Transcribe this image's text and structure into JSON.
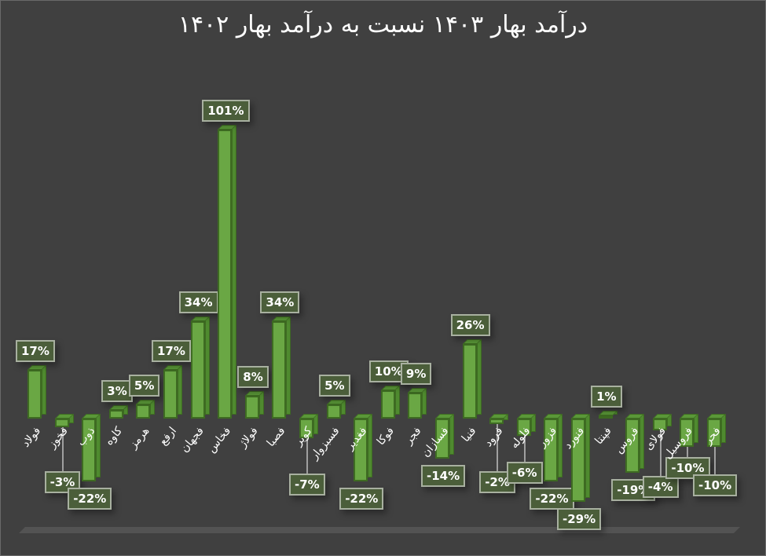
{
  "chart_data": {
    "type": "bar",
    "title": "درآمد بهار ۱۴۰۳ نسبت به درآمد بهار ۱۴۰۲",
    "xlabel": "",
    "ylabel": "",
    "grid": false,
    "legend": null,
    "value_format": "percent",
    "categories": [
      "فولاد",
      "فخوز",
      "ذوب",
      "کاوه",
      "هرمز",
      "ارفع",
      "فجهان",
      "فخاس",
      "فولاژ",
      "فصبا",
      "کویر",
      "فسبزوار",
      "فغدیر",
      "فوکا",
      "فجر",
      "فسازان",
      "فنیا",
      "فرود",
      "فلوله",
      "فزور",
      "فنورد",
      "فپنتا",
      "فروس",
      "فولای",
      "فروسیل",
      "فحر"
    ],
    "values": [
      17,
      -3,
      -22,
      3,
      5,
      17,
      34,
      101,
      8,
      34,
      -7,
      5,
      -22,
      10,
      9,
      -14,
      26,
      -2,
      -6,
      -22,
      -29,
      1,
      -19,
      -4,
      -10,
      -10
    ],
    "labels": [
      "17%",
      "-3%",
      "-22%",
      "3%",
      "5%",
      "17%",
      "34%",
      "101%",
      "8%",
      "34%",
      "-7%",
      "5%",
      "-22%",
      "10%",
      "9%",
      "-14%",
      "26%",
      "-2%",
      "-6%",
      "-22%",
      "-29%",
      "1%",
      "-19%",
      "-4%",
      "-10%",
      "-10%"
    ],
    "colors": {
      "bar": "#6aa744",
      "bar_border": "#3e6b22",
      "label_bg": "#4b5e3a",
      "background": "#404040",
      "text": "#ffffff"
    }
  }
}
